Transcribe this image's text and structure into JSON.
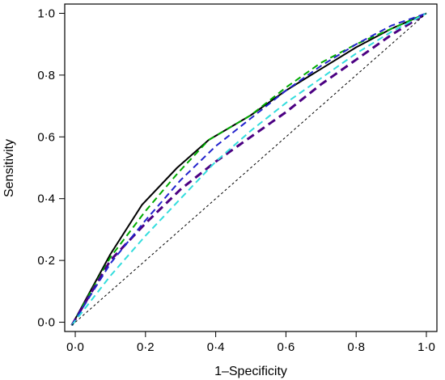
{
  "chart_data": {
    "type": "line",
    "xlabel": "1–Specificity",
    "ylabel": "Sensitivity",
    "xlim": [
      -0.03,
      1.03
    ],
    "ylim": [
      -0.03,
      1.03
    ],
    "x_ticks": [
      0.0,
      0.2,
      0.4,
      0.6,
      0.8,
      1.0
    ],
    "x_tick_labels": [
      "0·0",
      "0·2",
      "0·4",
      "0·6",
      "0·8",
      "1·0"
    ],
    "y_ticks": [
      0.0,
      0.2,
      0.4,
      0.6,
      0.8,
      1.0
    ],
    "y_tick_labels": [
      "0·0",
      "0·2",
      "0·4",
      "0·6",
      "0·8",
      "1·0"
    ],
    "grid": false,
    "series": [
      {
        "color": "#000000",
        "dash": "solid",
        "width": 2,
        "points": [
          [
            -0.01,
            -0.01
          ],
          [
            0.1,
            0.22
          ],
          [
            0.19,
            0.38
          ],
          [
            0.29,
            0.5
          ],
          [
            0.38,
            0.59
          ],
          [
            0.5,
            0.67
          ],
          [
            0.6,
            0.75
          ],
          [
            0.7,
            0.82
          ],
          [
            0.8,
            0.89
          ],
          [
            0.9,
            0.95
          ],
          [
            1.0,
            1.0
          ]
        ]
      },
      {
        "color": "#00aa00",
        "dash": "dashed",
        "width": 2,
        "points": [
          [
            -0.01,
            -0.01
          ],
          [
            0.1,
            0.21
          ],
          [
            0.2,
            0.36
          ],
          [
            0.29,
            0.48
          ],
          [
            0.38,
            0.59
          ],
          [
            0.5,
            0.67
          ],
          [
            0.6,
            0.76
          ],
          [
            0.7,
            0.84
          ],
          [
            0.8,
            0.9
          ],
          [
            0.9,
            0.95
          ],
          [
            1.0,
            1.0
          ]
        ]
      },
      {
        "color": "#4b0082",
        "dash": "dashed",
        "width": 3,
        "points": [
          [
            -0.01,
            -0.01
          ],
          [
            0.1,
            0.2
          ],
          [
            0.2,
            0.32
          ],
          [
            0.3,
            0.43
          ],
          [
            0.4,
            0.52
          ],
          [
            0.5,
            0.6
          ],
          [
            0.6,
            0.68
          ],
          [
            0.7,
            0.77
          ],
          [
            0.8,
            0.85
          ],
          [
            0.9,
            0.93
          ],
          [
            1.0,
            1.0
          ]
        ]
      },
      {
        "color": "#2222cc",
        "dash": "dashed",
        "width": 2,
        "points": [
          [
            -0.01,
            -0.01
          ],
          [
            0.1,
            0.19
          ],
          [
            0.2,
            0.33
          ],
          [
            0.3,
            0.46
          ],
          [
            0.4,
            0.57
          ],
          [
            0.5,
            0.66
          ],
          [
            0.6,
            0.75
          ],
          [
            0.7,
            0.83
          ],
          [
            0.8,
            0.9
          ],
          [
            0.9,
            0.96
          ],
          [
            1.0,
            1.0
          ]
        ]
      },
      {
        "color": "#33dddd",
        "dash": "dashed",
        "width": 2,
        "points": [
          [
            -0.01,
            -0.01
          ],
          [
            0.1,
            0.15
          ],
          [
            0.2,
            0.28
          ],
          [
            0.3,
            0.4
          ],
          [
            0.4,
            0.52
          ],
          [
            0.5,
            0.62
          ],
          [
            0.6,
            0.71
          ],
          [
            0.7,
            0.79
          ],
          [
            0.8,
            0.87
          ],
          [
            0.9,
            0.94
          ],
          [
            1.0,
            1.0
          ]
        ]
      },
      {
        "color": "#000000",
        "dash": "dotted",
        "width": 1,
        "points": [
          [
            -0.01,
            -0.01
          ],
          [
            1.0,
            1.0
          ]
        ]
      }
    ]
  }
}
